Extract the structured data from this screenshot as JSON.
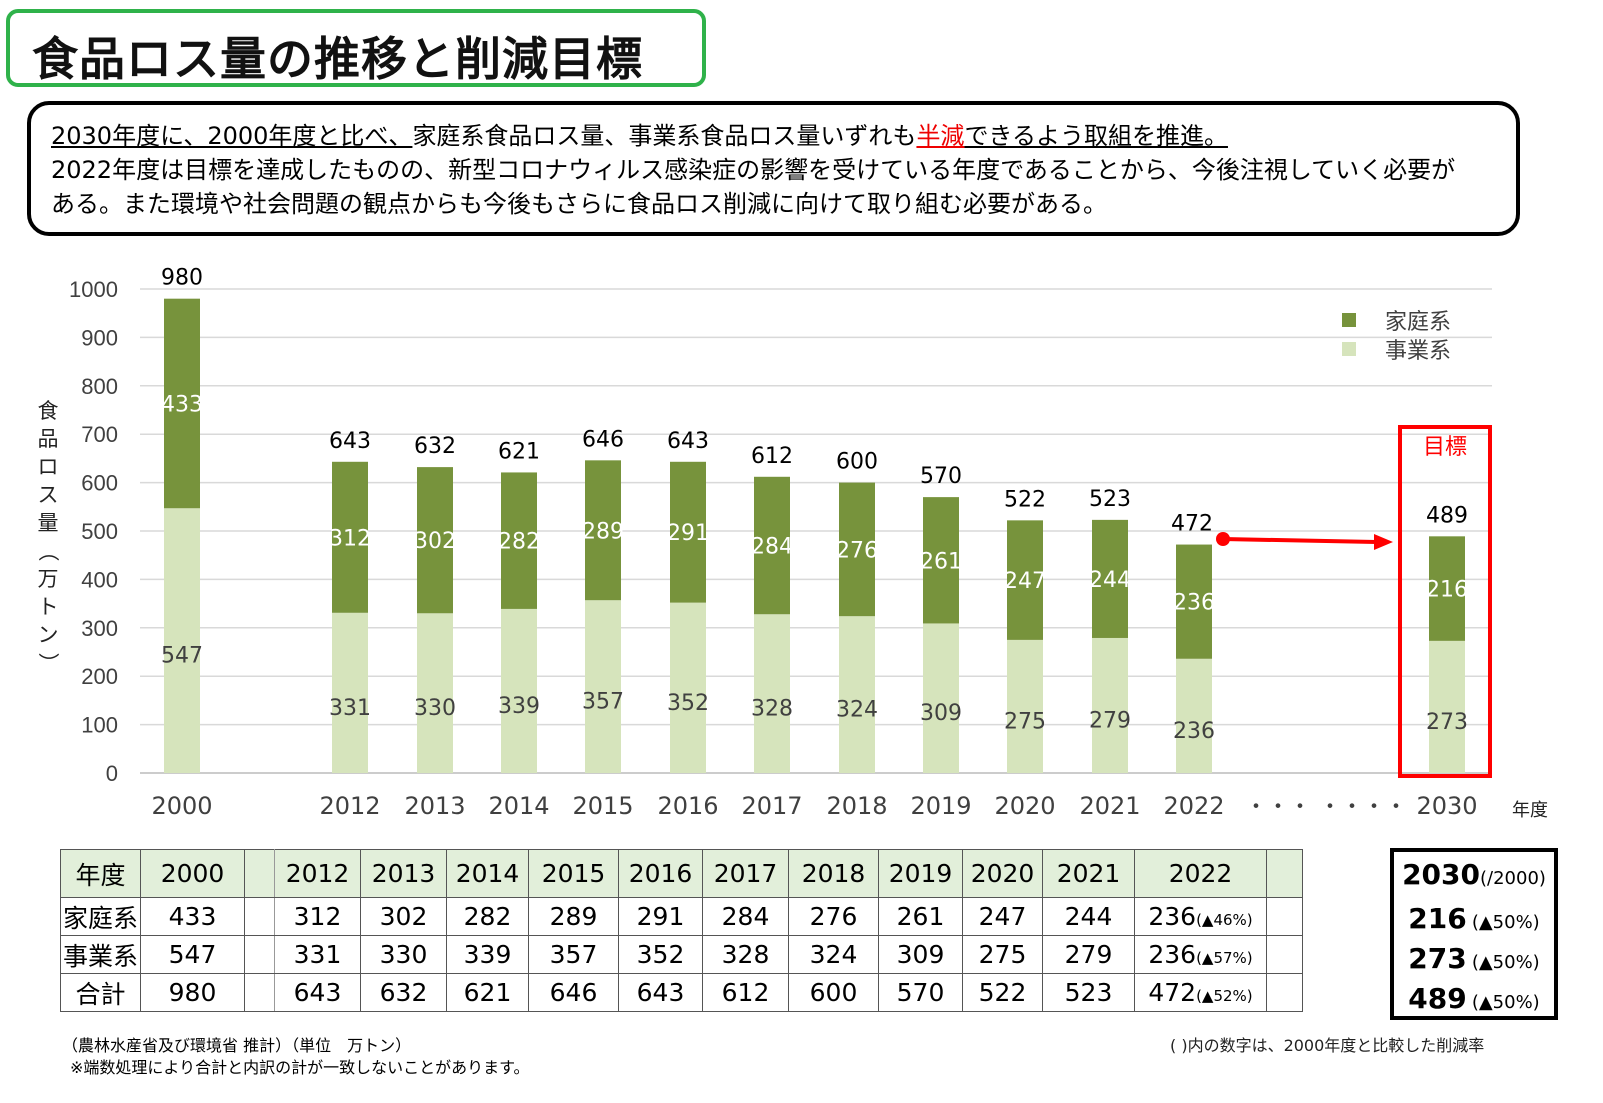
{
  "title": "食品ロス量の推移と削減目標",
  "description": {
    "line1_underlined": "2030年度に、2000年度と比べ、",
    "line1_rest": "家庭系食品ロス量、事業系食品ロス量いずれも",
    "line1_red": "半減",
    "line1_end": "できるよう取組を推進。",
    "line2": "2022年度は目標を達成したものの、新型コロナウィルス感染症の影響を受けている年度であることから、今後注視していく必要が",
    "line3": "ある。また環境や社会問題の観点からも今後もさらに食品ロス削減に向けて取り組む必要がある。"
  },
  "chart_data": {
    "type": "bar",
    "stacked": true,
    "categories": [
      "2000",
      "2012",
      "2013",
      "2014",
      "2015",
      "2016",
      "2017",
      "2018",
      "2019",
      "2020",
      "2021",
      "2022",
      "2030"
    ],
    "series": [
      {
        "name": "事業系",
        "color": "#d6e4bc",
        "values": [
          547,
          331,
          330,
          339,
          357,
          352,
          328,
          324,
          309,
          275,
          279,
          236,
          273
        ]
      },
      {
        "name": "家庭系",
        "color": "#77933c",
        "values": [
          433,
          312,
          302,
          282,
          289,
          291,
          284,
          276,
          261,
          247,
          244,
          236,
          216
        ]
      }
    ],
    "totals": [
      980,
      643,
      632,
      621,
      646,
      643,
      612,
      600,
      570,
      522,
      523,
      472,
      489
    ],
    "ylabel": "食品ロス量（万トン）",
    "xlabel": "年度",
    "ylim": [
      0,
      1000
    ],
    "yticks": [
      0,
      100,
      200,
      300,
      400,
      500,
      600,
      700,
      800,
      900,
      1000
    ],
    "grid": true,
    "legend": "top-right",
    "gap_markers": [
      "・・・",
      "・・・・"
    ],
    "target_label": "目標"
  },
  "table": {
    "header_label": "年度",
    "years": [
      "2000",
      "2012",
      "2013",
      "2014",
      "2015",
      "2016",
      "2017",
      "2018",
      "2019",
      "2020",
      "2021",
      "2022"
    ],
    "rows": [
      {
        "label": "家庭系",
        "values": [
          "433",
          "312",
          "302",
          "282",
          "289",
          "291",
          "284",
          "276",
          "261",
          "247",
          "244",
          "236"
        ],
        "pct2022": "(▲46%)"
      },
      {
        "label": "事業系",
        "values": [
          "547",
          "331",
          "330",
          "339",
          "357",
          "352",
          "328",
          "324",
          "309",
          "275",
          "279",
          "236"
        ],
        "pct2022": "(▲57%)"
      },
      {
        "label": "合計",
        "values": [
          "980",
          "643",
          "632",
          "621",
          "646",
          "643",
          "612",
          "600",
          "570",
          "522",
          "523",
          "472"
        ],
        "pct2022": "(▲52%)"
      }
    ],
    "target": {
      "year": "2030",
      "year_note": "(/2000)",
      "rows": [
        {
          "value": "216",
          "pct": "(▲50%)"
        },
        {
          "value": "273",
          "pct": "(▲50%)"
        },
        {
          "value": "489",
          "pct": "(▲50%)"
        }
      ]
    }
  },
  "footnotes": {
    "source": "（農林水産省及び環境省 推計）（単位　万トン）",
    "rounding": "※端数処理により合計と内訳の計が一致しないことがあります。",
    "ratio_note": "( )内の数字は、2000年度と比較した削減率"
  }
}
